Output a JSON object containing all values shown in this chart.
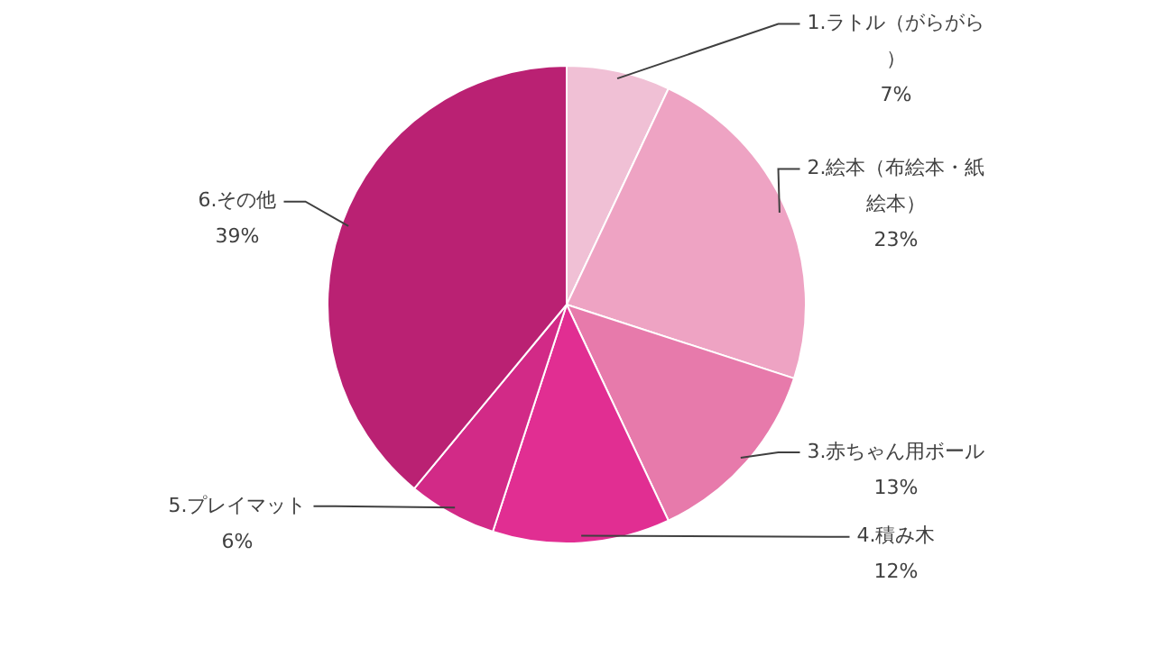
{
  "chart_data": {
    "type": "pie",
    "categories": [
      "1.ラトル（がらがら）",
      "2.絵本（布絵本・紙絵本）",
      "3.赤ちゃん用ボール",
      "4.積み木",
      "5.プレイマット",
      "6.その他"
    ],
    "values": [
      7,
      23,
      13,
      12,
      6,
      39
    ],
    "value_labels": [
      "7%",
      "23%",
      "13%",
      "12%",
      "6%",
      "39%"
    ],
    "colors": [
      "#f0c0d5",
      "#eea3c3",
      "#e77aab",
      "#e12e92",
      "#d22a87",
      "#ba2173"
    ],
    "legend": false
  }
}
